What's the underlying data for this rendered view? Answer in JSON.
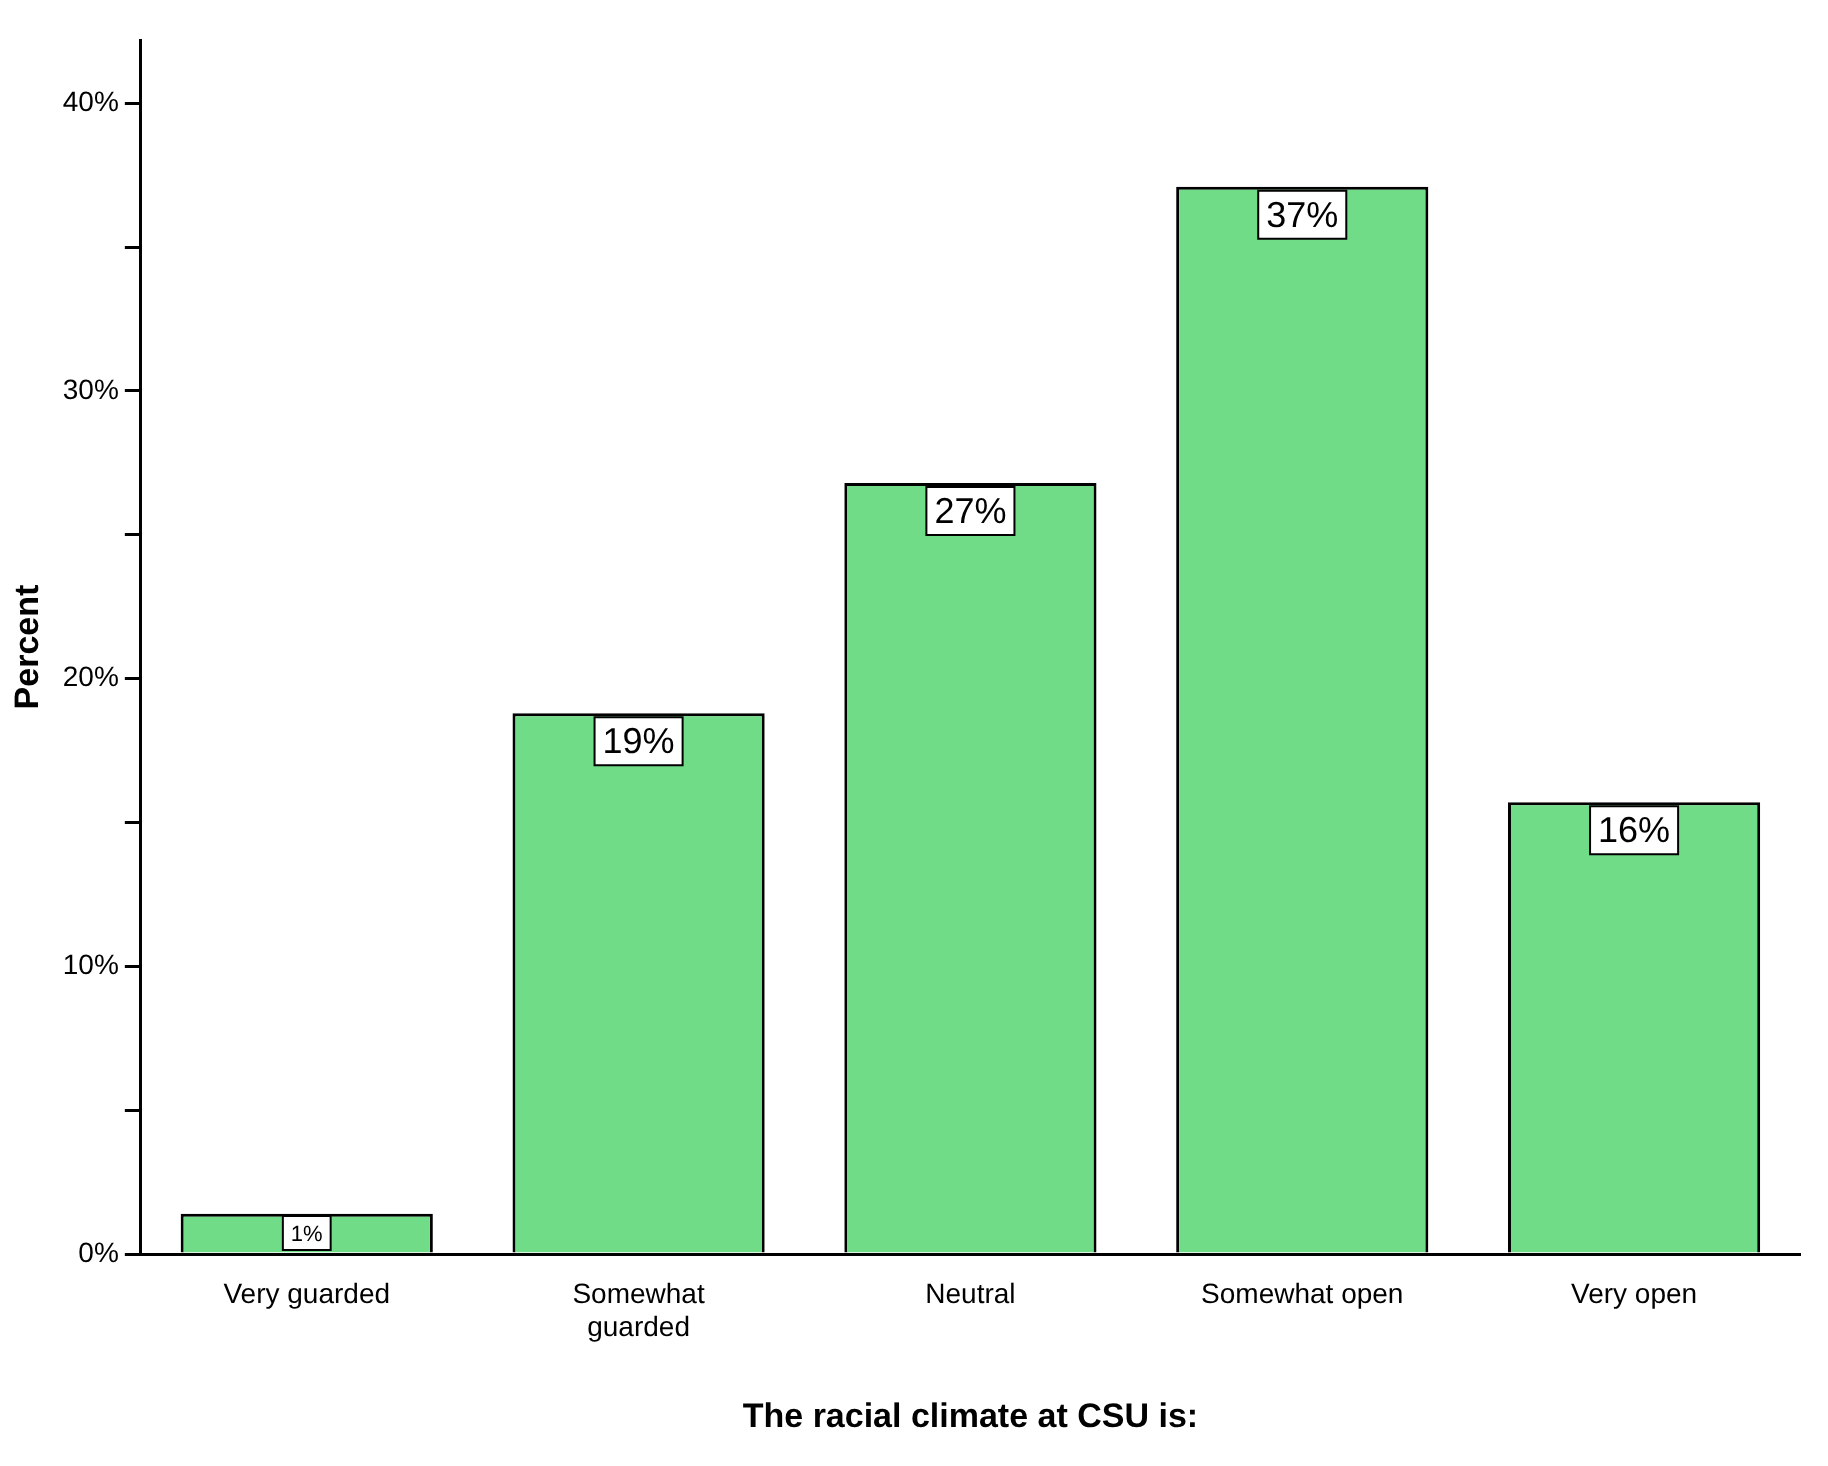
{
  "chart_data": {
    "type": "bar",
    "xlabel": "The racial climate at CSU is:",
    "ylabel": "Percent",
    "categories": [
      "Very guarded",
      "Somewhat guarded",
      "Neutral",
      "Somewhat open",
      "Very open"
    ],
    "values": [
      1.4,
      18.8,
      26.8,
      37.1,
      15.7
    ],
    "value_labels": [
      "1%",
      "19%",
      "27%",
      "37%",
      "16%"
    ],
    "color": "#70dc87",
    "ylim": [
      0,
      42.2
    ],
    "yticks": [
      {
        "value": 0,
        "label": "0%"
      },
      {
        "value": 5,
        "label": null
      },
      {
        "value": 10,
        "label": "10%"
      },
      {
        "value": 15,
        "label": null
      },
      {
        "value": 20,
        "label": "20%"
      },
      {
        "value": 25,
        "label": null
      },
      {
        "value": 30,
        "label": "30%"
      },
      {
        "value": 35,
        "label": null
      },
      {
        "value": 40,
        "label": "40%"
      }
    ],
    "grid": false,
    "legend": false
  }
}
